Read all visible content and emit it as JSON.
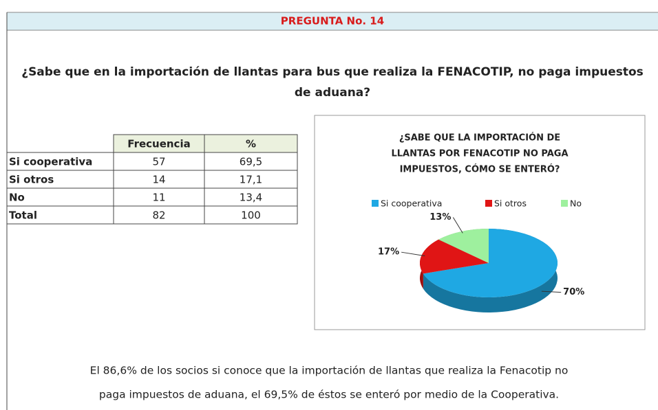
{
  "header": {
    "title": "PREGUNTA No. 14"
  },
  "question": [
    "¿Sabe que en la importación de llantas para bus que realiza la FENACOTIP, no paga impuestos",
    "de aduana?"
  ],
  "table": {
    "columns": [
      "Frecuencia",
      "%"
    ],
    "rows": [
      [
        "Si cooperativa",
        "57",
        "69,5"
      ],
      [
        "Si otros",
        "14",
        "17,1"
      ],
      [
        "No",
        "11",
        "13,4"
      ],
      [
        "Total",
        "82",
        "100"
      ]
    ]
  },
  "chart_data": {
    "type": "pie",
    "title": [
      "¿SABE QUE LA IMPORTACIÓN DE",
      "LLANTAS POR FENACOTIP NO PAGA",
      "IMPUESTOS, CÓMO SE ENTERÓ?"
    ],
    "categories": [
      "Si cooperativa",
      "Si otros",
      "No"
    ],
    "values": [
      70,
      17,
      13
    ],
    "value_labels": [
      "70%",
      "17%",
      "13%"
    ],
    "colors": [
      "#1fa8e3",
      "#e01515",
      "#9ef09e"
    ],
    "legend": "top"
  },
  "conclusion": [
    "El 86,6% de los socios si conoce que la importación de llantas que realiza la Fenacotip no",
    "paga impuestos de aduana,  el 69,5% de éstos se enteró por medio de la Cooperativa."
  ]
}
